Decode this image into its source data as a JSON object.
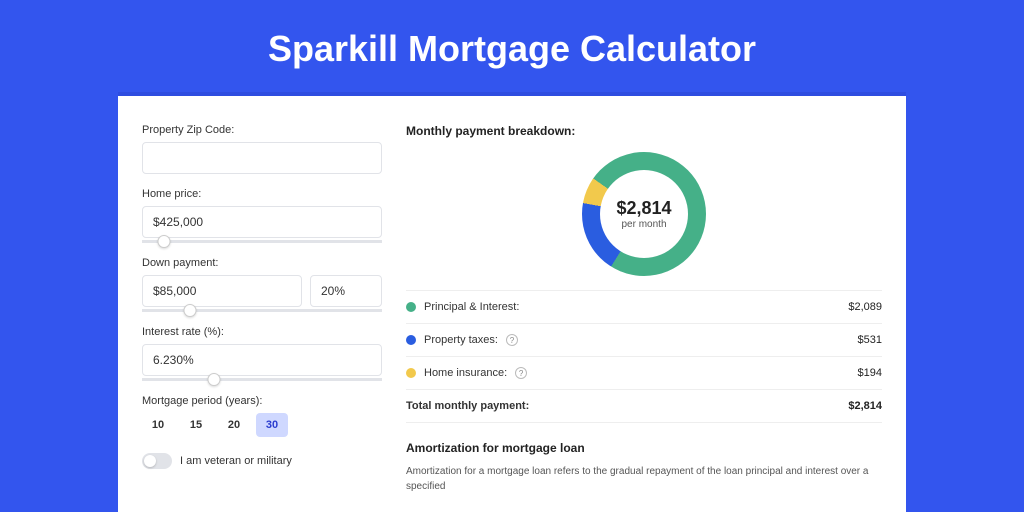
{
  "colors": {
    "page_bg": "#3355ee",
    "card_bg": "#ffffff",
    "card_top_border": "#2e4de0",
    "input_border": "#e1e3e8",
    "chip_active_bg": "#cfd8ff",
    "chip_active_text": "#2a3ccf"
  },
  "title": "Sparkill Mortgage Calculator",
  "form": {
    "zip_label": "Property Zip Code:",
    "zip_value": "",
    "home_price_label": "Home price:",
    "home_price_value": "$425,000",
    "home_price_slider_pct": 9,
    "down_payment_label": "Down payment:",
    "down_payment_value": "$85,000",
    "down_payment_pct_value": "20%",
    "down_payment_slider_pct": 20,
    "interest_label": "Interest rate (%):",
    "interest_value": "6.230%",
    "interest_slider_pct": 30,
    "period_label": "Mortgage period (years):",
    "periods": [
      {
        "label": "10",
        "active": false
      },
      {
        "label": "15",
        "active": false
      },
      {
        "label": "20",
        "active": false
      },
      {
        "label": "30",
        "active": true
      }
    ],
    "veteran_label": "I am veteran or military"
  },
  "breakdown": {
    "title": "Monthly payment breakdown:",
    "donut": {
      "amount": "$2,814",
      "sub": "per month",
      "slices": [
        {
          "name": "principal_interest",
          "color": "#45b088",
          "pct": 74.2
        },
        {
          "name": "property_taxes",
          "color": "#2a5de0",
          "pct": 18.9
        },
        {
          "name": "home_insurance",
          "color": "#f2c94c",
          "pct": 6.9
        }
      ],
      "hole_pct": 71,
      "start_angle_deg": -55
    },
    "rows": [
      {
        "swatch": "#45b088",
        "label": "Principal & Interest:",
        "help": false,
        "value": "$2,089"
      },
      {
        "swatch": "#2a5de0",
        "label": "Property taxes:",
        "help": true,
        "value": "$531"
      },
      {
        "swatch": "#f2c94c",
        "label": "Home insurance:",
        "help": true,
        "value": "$194"
      }
    ],
    "total_label": "Total monthly payment:",
    "total_value": "$2,814"
  },
  "amortization": {
    "title": "Amortization for mortgage loan",
    "body": "Amortization for a mortgage loan refers to the gradual repayment of the loan principal and interest over a specified"
  }
}
